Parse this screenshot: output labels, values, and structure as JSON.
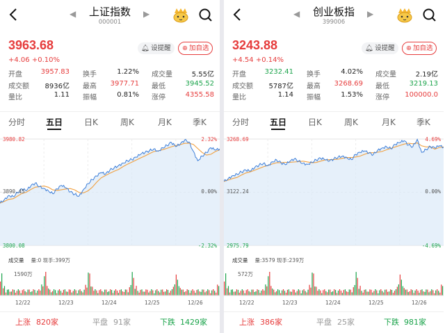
{
  "colors": {
    "up": "#e63c3c",
    "down": "#1aa34a",
    "flat": "#999999",
    "ma": "#f0a040",
    "line": "#3b7dd8",
    "fill": "#dbe9f8"
  },
  "panels": [
    {
      "title": "上证指数",
      "code": "000001",
      "price": "3963.68",
      "change": "+4.06 +0.10%",
      "remind_label": "设提醒",
      "add_label": "加自选",
      "stats": [
        [
          {
            "l": "开盘",
            "v": "3957.83",
            "c": "red"
          },
          {
            "l": "换手",
            "v": "1.22%",
            "c": "dark"
          },
          {
            "l": "成交量",
            "v": "5.55亿",
            "c": "dark"
          }
        ],
        [
          {
            "l": "成交额",
            "v": "8936亿",
            "c": "dark"
          },
          {
            "l": "最高",
            "v": "3977.71",
            "c": "red"
          },
          {
            "l": "最低",
            "v": "3945.52",
            "c": "green"
          }
        ],
        [
          {
            "l": "量比",
            "v": "1.11",
            "c": "dark"
          },
          {
            "l": "振幅",
            "v": "0.81%",
            "c": "dark"
          },
          {
            "l": "涨停",
            "v": "4355.58",
            "c": "red"
          }
        ]
      ],
      "tabs": [
        "分时",
        "五日",
        "日K",
        "周K",
        "月K",
        "季K"
      ],
      "active_tab": 1,
      "y_top": "3980.82",
      "y_mid": "3890.45",
      "y_bot": "3800.08",
      "pct_top": "2.32%",
      "pct_mid": "0.00%",
      "pct_bot": "-2.32%",
      "vol_label": "成交量",
      "vol_sub": "量:0 现手:399万",
      "vol_max": "1590万",
      "x_labels": [
        "12/22",
        "12/23",
        "12/24",
        "12/25",
        "12/26"
      ],
      "up_label": "上涨",
      "up_count": "820家",
      "flat_label": "平盘",
      "flat_count": "91家",
      "down_label": "下跌",
      "down_count": "1429家",
      "chart_data": {
        "type": "line",
        "ylim": [
          3800.08,
          3980.82
        ],
        "days": [
          "12/22",
          "12/23",
          "12/24",
          "12/25",
          "12/26"
        ],
        "series": [
          {
            "values": [
              3872,
              3878,
              3885,
              3883,
              3890,
              3896,
              3893,
              3901,
              3906,
              3900,
              3897,
              3893,
              3888,
              3896,
              3902,
              3898,
              3891,
              3887,
              3884,
              3895,
              3905,
              3912,
              3918,
              3924,
              3921,
              3928,
              3932,
              3936,
              3940,
              3944,
              3946,
              3950,
              3955,
              3958,
              3961,
              3964,
              3960,
              3966,
              3970,
              3975,
              3968,
              3972,
              3979,
              3976,
              3960,
              3944,
              3952,
              3958,
              3966,
              3962,
              3964
            ]
          }
        ]
      }
    },
    {
      "title": "创业板指",
      "code": "399006",
      "price": "3243.88",
      "change": "+4.54 +0.14%",
      "remind_label": "设提醒",
      "add_label": "加自选",
      "stats": [
        [
          {
            "l": "开盘",
            "v": "3232.41",
            "c": "green"
          },
          {
            "l": "换手",
            "v": "4.02%",
            "c": "dark"
          },
          {
            "l": "成交量",
            "v": "2.19亿",
            "c": "dark"
          }
        ],
        [
          {
            "l": "成交额",
            "v": "5787亿",
            "c": "dark"
          },
          {
            "l": "最高",
            "v": "3268.69",
            "c": "red"
          },
          {
            "l": "最低",
            "v": "3219.13",
            "c": "green"
          }
        ],
        [
          {
            "l": "量比",
            "v": "1.14",
            "c": "dark"
          },
          {
            "l": "振幅",
            "v": "1.53%",
            "c": "dark"
          },
          {
            "l": "涨停",
            "v": "100000.0",
            "c": "red"
          }
        ]
      ],
      "tabs": [
        "分时",
        "五日",
        "日K",
        "周K",
        "月K",
        "季K"
      ],
      "active_tab": 1,
      "y_top": "3268.69",
      "y_mid": "3122.24",
      "y_bot": "2975.79",
      "pct_top": "4.69%",
      "pct_mid": "0.00%",
      "pct_bot": "-4.69%",
      "vol_label": "成交量",
      "vol_sub": "量:3579 现手:239万",
      "vol_max": "572万",
      "x_labels": [
        "12/22",
        "12/23",
        "12/24",
        "12/25",
        "12/26"
      ],
      "up_label": "上涨",
      "up_count": "386家",
      "flat_label": "平盘",
      "flat_count": "25家",
      "down_label": "下跌",
      "down_count": "981家",
      "chart_data": {
        "type": "line",
        "ylim": [
          2975.79,
          3268.69
        ],
        "days": [
          "12/22",
          "12/23",
          "12/24",
          "12/25",
          "12/26"
        ],
        "series": [
          {
            "values": [
              3152,
              3160,
              3168,
              3172,
              3178,
              3183,
              3180,
              3190,
              3197,
              3202,
              3195,
              3206,
              3211,
              3203,
              3198,
              3207,
              3214,
              3208,
              3202,
              3199,
              3205,
              3211,
              3216,
              3212,
              3208,
              3214,
              3219,
              3222,
              3217,
              3212,
              3226,
              3232,
              3236,
              3230,
              3226,
              3238,
              3244,
              3248,
              3242,
              3254,
              3259,
              3264,
              3252,
              3248,
              3268,
              3232,
              3240,
              3248,
              3244,
              3250,
              3246
            ]
          }
        ]
      }
    }
  ]
}
